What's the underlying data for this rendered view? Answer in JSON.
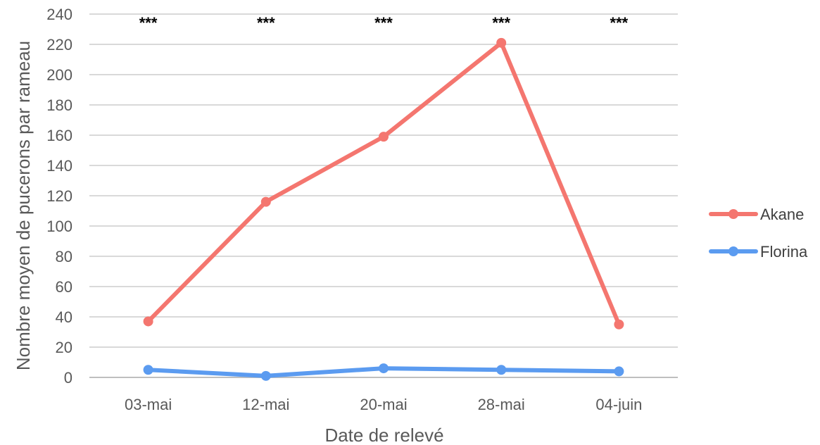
{
  "chart_data": {
    "type": "line",
    "title": "",
    "xlabel": "Date de relevé",
    "ylabel": "Nombre moyen de pucerons par rameau",
    "categories": [
      "03-mai",
      "12-mai",
      "20-mai",
      "28-mai",
      "04-juin"
    ],
    "ylim": [
      0,
      240
    ],
    "yticks": [
      0,
      20,
      40,
      60,
      80,
      100,
      120,
      140,
      160,
      180,
      200,
      220,
      240
    ],
    "grid": true,
    "legend_position": "right",
    "series": [
      {
        "name": "Akane",
        "color": "#F4766F",
        "values": [
          37,
          116,
          159,
          221,
          35
        ]
      },
      {
        "name": "Florina",
        "color": "#5B9BF0",
        "values": [
          5,
          1,
          6,
          5,
          4
        ]
      }
    ],
    "annotations": [
      "***",
      "***",
      "***",
      "***",
      "***"
    ]
  }
}
